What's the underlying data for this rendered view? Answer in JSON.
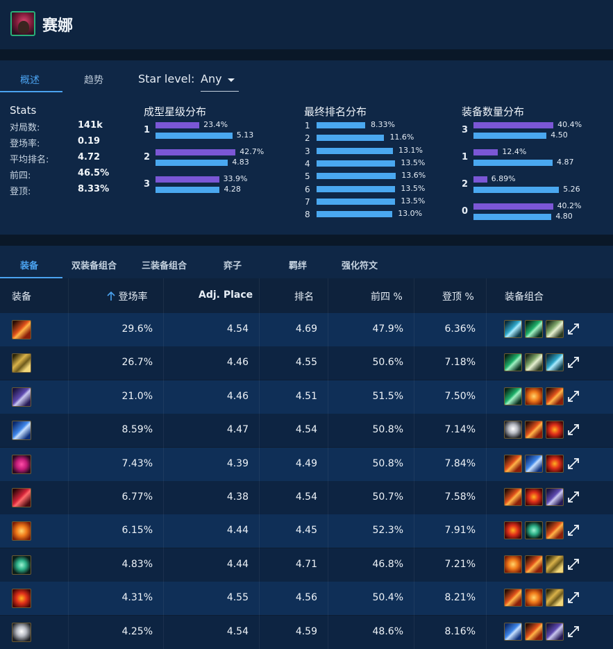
{
  "header": {
    "title": "赛娜",
    "avatar_icon": "champion-portrait"
  },
  "overview_tabs": [
    {
      "label": "概述",
      "active": true
    },
    {
      "label": "趋势",
      "active": false
    }
  ],
  "star_level": {
    "label": "Star level:",
    "value": "Any"
  },
  "stats": {
    "title": "Stats",
    "rows": [
      {
        "label": "对局数:",
        "value": "141k"
      },
      {
        "label": "登场率:",
        "value": "0.19"
      },
      {
        "label": "平均排名:",
        "value": "4.72"
      },
      {
        "label": "前四:",
        "value": "46.5%"
      },
      {
        "label": "登顶:",
        "value": "8.33%"
      }
    ]
  },
  "star_dist": {
    "title": "成型星级分布",
    "rows": [
      {
        "label": "1",
        "pct": "23.4%",
        "pct_value": 23.4,
        "avg": "5.13",
        "avg_value": 5.13
      },
      {
        "label": "2",
        "pct": "42.7%",
        "pct_value": 42.7,
        "avg": "4.83",
        "avg_value": 4.83
      },
      {
        "label": "3",
        "pct": "33.9%",
        "pct_value": 33.9,
        "avg": "4.28",
        "avg_value": 4.28
      }
    ]
  },
  "place_dist": {
    "title": "最终排名分布",
    "rows": [
      {
        "label": "1",
        "pct": "8.33%",
        "value": 8.33
      },
      {
        "label": "2",
        "pct": "11.6%",
        "value": 11.6
      },
      {
        "label": "3",
        "pct": "13.1%",
        "value": 13.1
      },
      {
        "label": "4",
        "pct": "13.5%",
        "value": 13.5
      },
      {
        "label": "5",
        "pct": "13.6%",
        "value": 13.6
      },
      {
        "label": "6",
        "pct": "13.5%",
        "value": 13.5
      },
      {
        "label": "7",
        "pct": "13.5%",
        "value": 13.5
      },
      {
        "label": "8",
        "pct": "13.0%",
        "value": 13.0
      }
    ]
  },
  "item_count_dist": {
    "title": "装备数量分布",
    "rows": [
      {
        "label": "3",
        "pct": "40.4%",
        "pct_value": 40.4,
        "avg": "4.50",
        "avg_value": 4.5
      },
      {
        "label": "1",
        "pct": "12.4%",
        "pct_value": 12.4,
        "avg": "4.87",
        "avg_value": 4.87
      },
      {
        "label": "2",
        "pct": "6.89%",
        "pct_value": 6.89,
        "avg": "5.26",
        "avg_value": 5.26
      },
      {
        "label": "0",
        "pct": "40.2%",
        "pct_value": 40.2,
        "avg": "4.80",
        "avg_value": 4.8
      }
    ]
  },
  "detail_tabs": [
    {
      "label": "装备",
      "active": true
    },
    {
      "label": "双装备组合",
      "active": false
    },
    {
      "label": "三装备组合",
      "active": false
    },
    {
      "label": "弈子",
      "active": false
    },
    {
      "label": "羁绊",
      "active": false
    },
    {
      "label": "强化符文",
      "active": false
    }
  ],
  "table": {
    "columns": {
      "item": "装备",
      "play_rate": "登场率",
      "adj_place": "Adj. Place",
      "place": "排名",
      "top4": "前四 %",
      "win": "登顶 %",
      "combos": "装备组合"
    },
    "sort_icon": "arrow-up-icon",
    "rows": [
      {
        "icon": "fire-blade",
        "play_rate": "29.6%",
        "adj_place": "4.54",
        "place": "4.69",
        "top4": "47.9%",
        "win": "6.36%",
        "combos": [
          "teal-claw",
          "green-hand",
          "blade-grip"
        ]
      },
      {
        "icon": "golden-claw",
        "play_rate": "26.7%",
        "adj_place": "4.46",
        "place": "4.55",
        "top4": "50.6%",
        "win": "7.18%",
        "combos": [
          "green-hand",
          "blade-grip",
          "teal-claw"
        ]
      },
      {
        "icon": "dark-spear",
        "play_rate": "21.0%",
        "adj_place": "4.46",
        "place": "4.51",
        "top4": "51.5%",
        "win": "7.50%",
        "combos": [
          "green-hand",
          "fire-bolt",
          "fire-blade"
        ]
      },
      {
        "icon": "blue-wave",
        "play_rate": "8.59%",
        "adj_place": "4.47",
        "place": "4.54",
        "top4": "50.8%",
        "win": "7.14%",
        "combos": [
          "white-ghost",
          "fire-blade",
          "red-orb"
        ]
      },
      {
        "icon": "pink-mask",
        "play_rate": "7.43%",
        "adj_place": "4.39",
        "place": "4.49",
        "top4": "50.8%",
        "win": "7.84%",
        "combos": [
          "fire-blade",
          "blue-wave",
          "red-orb"
        ]
      },
      {
        "icon": "red-claw",
        "play_rate": "6.77%",
        "adj_place": "4.38",
        "place": "4.54",
        "top4": "50.7%",
        "win": "7.58%",
        "combos": [
          "fire-blade",
          "red-orb",
          "dark-spear"
        ]
      },
      {
        "icon": "fire-bolt",
        "play_rate": "6.15%",
        "adj_place": "4.44",
        "place": "4.45",
        "top4": "52.3%",
        "win": "7.91%",
        "combos": [
          "red-orb",
          "green-serpent",
          "fire-blade"
        ]
      },
      {
        "icon": "green-serpent",
        "play_rate": "4.83%",
        "adj_place": "4.44",
        "place": "4.71",
        "top4": "46.8%",
        "win": "7.21%",
        "combos": [
          "fire-bolt",
          "fire-blade",
          "golden-claw"
        ]
      },
      {
        "icon": "red-orb",
        "play_rate": "4.31%",
        "adj_place": "4.55",
        "place": "4.56",
        "top4": "50.4%",
        "win": "8.21%",
        "combos": [
          "fire-blade",
          "fire-bolt",
          "golden-claw"
        ]
      },
      {
        "icon": "white-ghost",
        "play_rate": "4.25%",
        "adj_place": "4.54",
        "place": "4.59",
        "top4": "48.6%",
        "win": "8.16%",
        "combos": [
          "blue-wave",
          "fire-blade",
          "dark-spear"
        ]
      }
    ],
    "expand_icon": "expand-arrows-icon"
  },
  "colors": {
    "purple_bar": "#7b57d6",
    "blue_bar": "#4aa8f0",
    "accent": "#4ba3f0"
  }
}
